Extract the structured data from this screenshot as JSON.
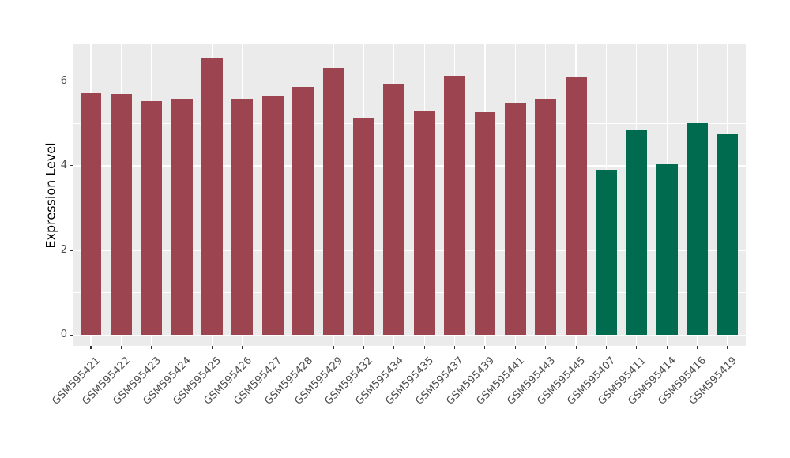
{
  "chart_data": {
    "type": "bar",
    "title": "",
    "xlabel": "",
    "ylabel": "Expression Level",
    "ylim": [
      0,
      6.86
    ],
    "yticks": [
      0,
      2,
      4,
      6
    ],
    "yminor": [
      1,
      3,
      5
    ],
    "grid": "on",
    "legend_position": "none",
    "panel_background": "#EBEBEB",
    "grid_color": "#FFFFFF",
    "tick_label_color": "#4D4D4D",
    "axis_title_color": "#000000",
    "tick_mark_color": "#333333",
    "group_colors": {
      "group1": "#9C4450",
      "group2": "#006B4E"
    },
    "categories": [
      "GSM595421",
      "GSM595422",
      "GSM595423",
      "GSM595424",
      "GSM595425",
      "GSM595426",
      "GSM595427",
      "GSM595428",
      "GSM595429",
      "GSM595432",
      "GSM595434",
      "GSM595435",
      "GSM595437",
      "GSM595439",
      "GSM595441",
      "GSM595443",
      "GSM595445",
      "GSM595407",
      "GSM595411",
      "GSM595414",
      "GSM595416",
      "GSM595419"
    ],
    "values": [
      5.72,
      5.7,
      5.53,
      5.59,
      6.53,
      5.56,
      5.66,
      5.86,
      6.3,
      5.13,
      5.93,
      5.3,
      6.13,
      5.27,
      5.48,
      5.58,
      6.1,
      3.91,
      4.86,
      4.03,
      5.01,
      4.75
    ],
    "groups": [
      "group1",
      "group1",
      "group1",
      "group1",
      "group1",
      "group1",
      "group1",
      "group1",
      "group1",
      "group1",
      "group1",
      "group1",
      "group1",
      "group1",
      "group1",
      "group1",
      "group1",
      "group2",
      "group2",
      "group2",
      "group2",
      "group2"
    ]
  }
}
